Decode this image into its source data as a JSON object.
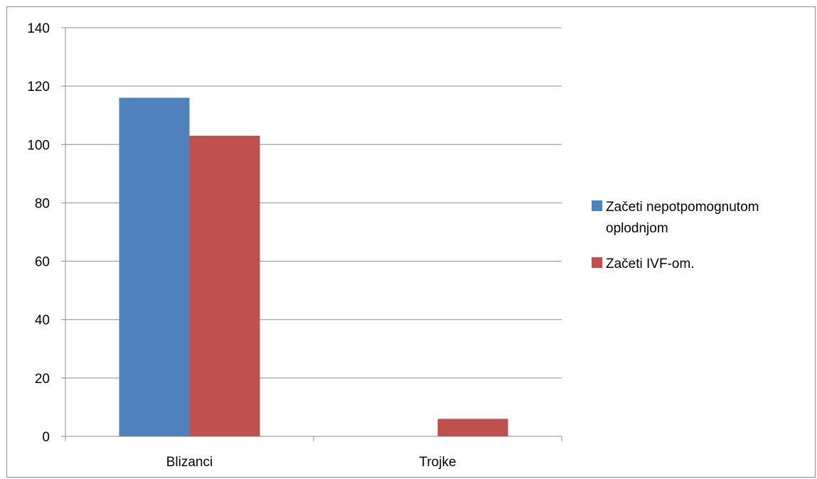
{
  "chart_data": {
    "type": "bar",
    "categories": [
      "Blizanci",
      "Trojke"
    ],
    "series": [
      {
        "name": "Začeti nepotpomognutom oplodnjom",
        "color": "#4f81bd",
        "values": [
          116,
          0
        ]
      },
      {
        "name": "Začeti IVF-om.",
        "color": "#c0504d",
        "values": [
          103,
          6
        ]
      }
    ],
    "ylim": [
      0,
      140
    ],
    "yticks": [
      0,
      20,
      40,
      60,
      80,
      100,
      120,
      140
    ],
    "grid": true,
    "legend": "right",
    "legend_lines": [
      [
        "Začeti nepotpomognutom",
        "oplodnjom"
      ],
      [
        "Začeti IVF-om."
      ]
    ]
  }
}
